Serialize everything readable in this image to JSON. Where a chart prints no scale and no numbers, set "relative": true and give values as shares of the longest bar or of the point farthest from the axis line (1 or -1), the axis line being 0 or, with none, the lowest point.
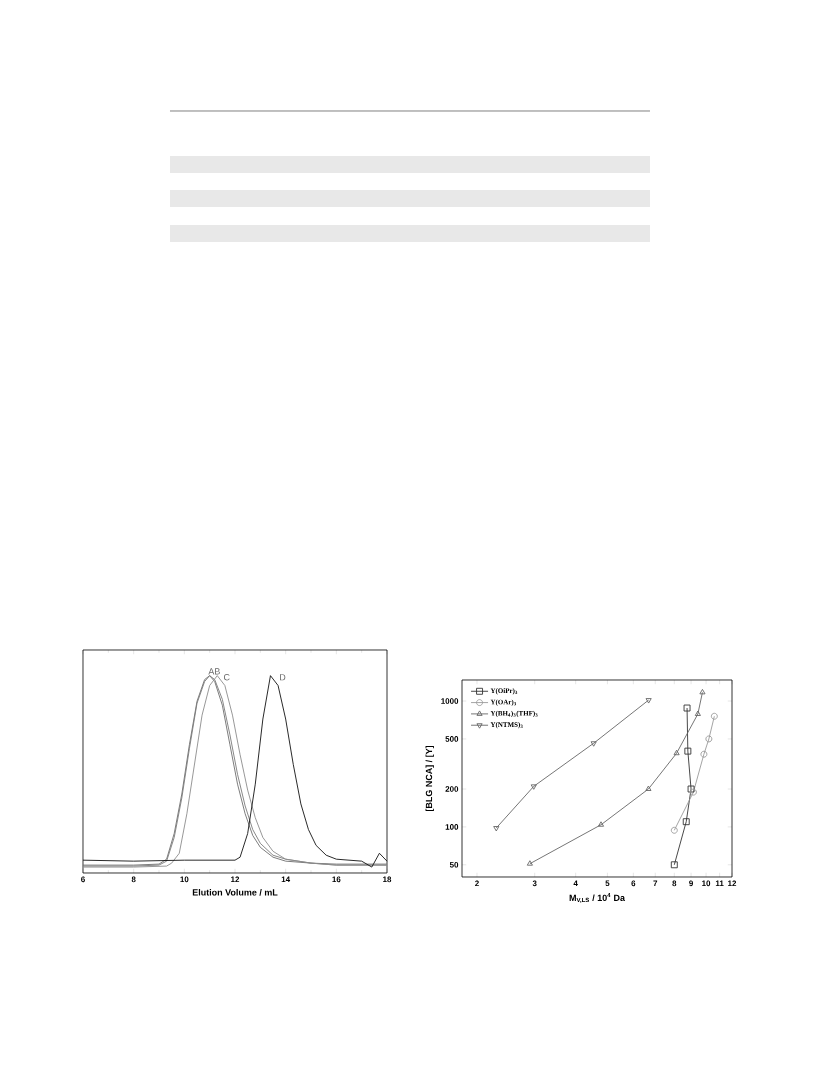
{
  "chart_data": [
    {
      "type": "line",
      "relative": true,
      "xlabel": "Elution Volume / mL",
      "xlim": [
        6,
        18
      ],
      "xticks": [
        6,
        8,
        10,
        12,
        14,
        16,
        18
      ],
      "grid": false,
      "legend": false,
      "series": [
        {
          "color": "#6e6e6e",
          "x": [
            6,
            8,
            9.0,
            9.3,
            9.6,
            9.9,
            10.2,
            10.5,
            10.8,
            11.0,
            11.2,
            11.5,
            11.8,
            12.1,
            12.4,
            12.7,
            13.0,
            13.5,
            14,
            15,
            16,
            18
          ],
          "values": [
            0.04,
            0.04,
            0.045,
            0.07,
            0.2,
            0.4,
            0.65,
            0.87,
            0.98,
            1.0,
            0.97,
            0.85,
            0.65,
            0.45,
            0.3,
            0.19,
            0.13,
            0.08,
            0.06,
            0.05,
            0.045,
            0.045
          ]
        },
        {
          "color": "#7a7a7a",
          "x": [
            6,
            8,
            9.0,
            9.3,
            9.6,
            9.9,
            10.2,
            10.5,
            10.8,
            11.0,
            11.2,
            11.5,
            11.8,
            12.1,
            12.4,
            12.7,
            13.0,
            13.5,
            14,
            15,
            16,
            18
          ],
          "values": [
            0.035,
            0.035,
            0.04,
            0.06,
            0.18,
            0.38,
            0.63,
            0.86,
            0.97,
            1.0,
            0.98,
            0.88,
            0.7,
            0.5,
            0.34,
            0.22,
            0.15,
            0.09,
            0.07,
            0.05,
            0.04,
            0.04
          ]
        },
        {
          "color": "#8c8c8c",
          "x": [
            6,
            8,
            9.3,
            9.5,
            9.8,
            10.1,
            10.4,
            10.7,
            11.0,
            11.3,
            11.6,
            11.9,
            12.2,
            12.5,
            12.8,
            13.1,
            13.5,
            14,
            15,
            16,
            18
          ],
          "values": [
            0.03,
            0.03,
            0.035,
            0.05,
            0.1,
            0.3,
            0.55,
            0.8,
            0.95,
            1.0,
            0.95,
            0.8,
            0.6,
            0.42,
            0.28,
            0.18,
            0.11,
            0.07,
            0.05,
            0.04,
            0.04
          ]
        },
        {
          "color": "#111111",
          "x": [
            6,
            8,
            10,
            12.0,
            12.2,
            12.5,
            12.8,
            13.1,
            13.4,
            13.7,
            14.0,
            14.3,
            14.6,
            14.9,
            15.2,
            15.6,
            16,
            17,
            17.4,
            17.7,
            18
          ],
          "values": [
            0.065,
            0.06,
            0.065,
            0.065,
            0.08,
            0.2,
            0.45,
            0.78,
            1.0,
            0.95,
            0.78,
            0.55,
            0.35,
            0.22,
            0.14,
            0.09,
            0.07,
            0.06,
            0.03,
            0.1,
            0.06
          ]
        }
      ],
      "annotations": [
        {
          "text": "AB",
          "x": 10.9,
          "y": 1.0
        },
        {
          "text": "C",
          "x": 11.5,
          "y": 0.97
        },
        {
          "text": "D",
          "x": 13.7,
          "y": 0.97
        }
      ]
    },
    {
      "type": "line",
      "log": "xy",
      "xlabel": "M$_{V,LS}$ / 10$^{4}$ Da",
      "ylabel": "[BLG NCA] / [Y]",
      "xlim": [
        1.8,
        12
      ],
      "ylim": [
        40,
        1470
      ],
      "xticks": [
        2,
        3,
        4,
        5,
        6,
        7,
        8,
        9,
        10,
        11,
        12
      ],
      "yticks": [
        50,
        100,
        200,
        500,
        1000
      ],
      "grid": false,
      "legend": "top left",
      "series": [
        {
          "name": "Y(OiPr)$_{3}$",
          "color": "#333333",
          "marker": "square",
          "x": [
            8.0,
            8.7,
            9.0,
            8.8,
            8.75
          ],
          "values": [
            50,
            110,
            200,
            400,
            880
          ]
        },
        {
          "name": "Y(OAr)$_{3}$",
          "color": "#999999",
          "marker": "circle",
          "x": [
            8.0,
            9.15,
            9.85,
            10.2,
            10.6
          ],
          "values": [
            94,
            189,
            378,
            500,
            757
          ]
        },
        {
          "name": "Y(BH$_{4}$)$_{3}$(THF)$_{3}$",
          "color": "#666666",
          "marker": "triangle",
          "x": [
            2.9,
            4.78,
            6.67,
            8.13,
            9.44,
            9.75
          ],
          "values": [
            51,
            104,
            200,
            385,
            789,
            1172
          ]
        },
        {
          "name": "Y(NTMS)$_{3}$",
          "color": "#666666",
          "marker": "triangle-down",
          "x": [
            2.29,
            2.98,
            4.54,
            6.68
          ],
          "values": [
            98,
            210,
            462,
            1018
          ]
        }
      ]
    }
  ]
}
